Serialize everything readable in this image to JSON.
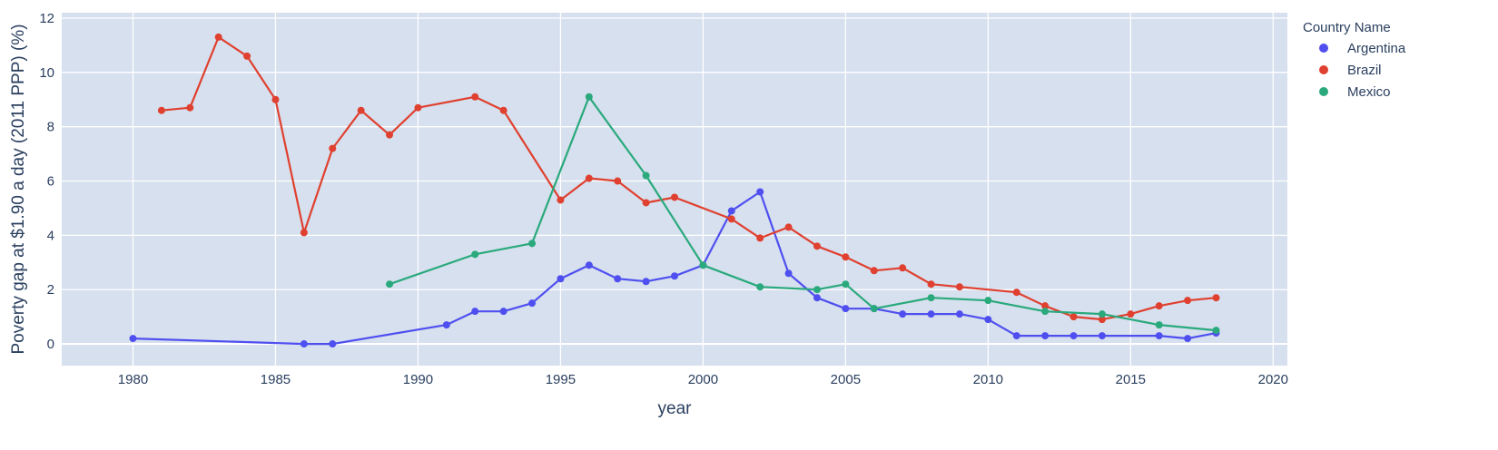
{
  "chart_data": {
    "type": "line",
    "xlabel": "year",
    "ylabel": "Poverty gap at $1.90 a day (2011 PPP) (%)",
    "xlim": [
      1977.5,
      2020.5
    ],
    "ylim": [
      -0.8,
      12.2
    ],
    "xticks": [
      1980,
      1985,
      1990,
      1995,
      2000,
      2005,
      2010,
      2015,
      2020
    ],
    "yticks": [
      0,
      2,
      4,
      6,
      8,
      10,
      12
    ],
    "grid": true,
    "background": "#d6e0ee",
    "legend": {
      "title": "Country Name",
      "placement": "right"
    },
    "series": [
      {
        "name": "Argentina",
        "color": "#4f4ff0",
        "points": [
          [
            1980,
            0.2
          ],
          [
            1986,
            0.0
          ],
          [
            1987,
            0.0
          ],
          [
            1991,
            0.7
          ],
          [
            1992,
            1.2
          ],
          [
            1993,
            1.2
          ],
          [
            1994,
            1.5
          ],
          [
            1995,
            2.4
          ],
          [
            1996,
            2.9
          ],
          [
            1997,
            2.4
          ],
          [
            1998,
            2.3
          ],
          [
            1999,
            2.5
          ],
          [
            2000,
            2.9
          ],
          [
            2001,
            4.9
          ],
          [
            2002,
            5.6
          ],
          [
            2003,
            2.6
          ],
          [
            2004,
            1.7
          ],
          [
            2005,
            1.3
          ],
          [
            2006,
            1.3
          ],
          [
            2007,
            1.1
          ],
          [
            2008,
            1.1
          ],
          [
            2009,
            1.1
          ],
          [
            2010,
            0.9
          ],
          [
            2011,
            0.3
          ],
          [
            2012,
            0.3
          ],
          [
            2013,
            0.3
          ],
          [
            2014,
            0.3
          ],
          [
            2016,
            0.3
          ],
          [
            2017,
            0.2
          ],
          [
            2018,
            0.4
          ]
        ]
      },
      {
        "name": "Brazil",
        "color": "#e0402f",
        "points": [
          [
            1981,
            8.6
          ],
          [
            1982,
            8.7
          ],
          [
            1983,
            11.3
          ],
          [
            1984,
            10.6
          ],
          [
            1985,
            9.0
          ],
          [
            1986,
            4.1
          ],
          [
            1987,
            7.2
          ],
          [
            1988,
            8.6
          ],
          [
            1989,
            7.7
          ],
          [
            1990,
            8.7
          ],
          [
            1992,
            9.1
          ],
          [
            1993,
            8.6
          ],
          [
            1995,
            5.3
          ],
          [
            1996,
            6.1
          ],
          [
            1997,
            6.0
          ],
          [
            1998,
            5.2
          ],
          [
            1999,
            5.4
          ],
          [
            2001,
            4.6
          ],
          [
            2002,
            3.9
          ],
          [
            2003,
            4.3
          ],
          [
            2004,
            3.6
          ],
          [
            2005,
            3.2
          ],
          [
            2006,
            2.7
          ],
          [
            2007,
            2.8
          ],
          [
            2008,
            2.2
          ],
          [
            2009,
            2.1
          ],
          [
            2011,
            1.9
          ],
          [
            2012,
            1.4
          ],
          [
            2013,
            1.0
          ],
          [
            2014,
            0.9
          ],
          [
            2015,
            1.1
          ],
          [
            2016,
            1.4
          ],
          [
            2017,
            1.6
          ],
          [
            2018,
            1.7
          ]
        ]
      },
      {
        "name": "Mexico",
        "color": "#2aa97c",
        "points": [
          [
            1989,
            2.2
          ],
          [
            1992,
            3.3
          ],
          [
            1994,
            3.7
          ],
          [
            1996,
            9.1
          ],
          [
            1998,
            6.2
          ],
          [
            2000,
            2.9
          ],
          [
            2002,
            2.1
          ],
          [
            2004,
            2.0
          ],
          [
            2005,
            2.2
          ],
          [
            2006,
            1.3
          ],
          [
            2008,
            1.7
          ],
          [
            2010,
            1.6
          ],
          [
            2012,
            1.2
          ],
          [
            2014,
            1.1
          ],
          [
            2016,
            0.7
          ],
          [
            2018,
            0.5
          ]
        ]
      }
    ]
  }
}
